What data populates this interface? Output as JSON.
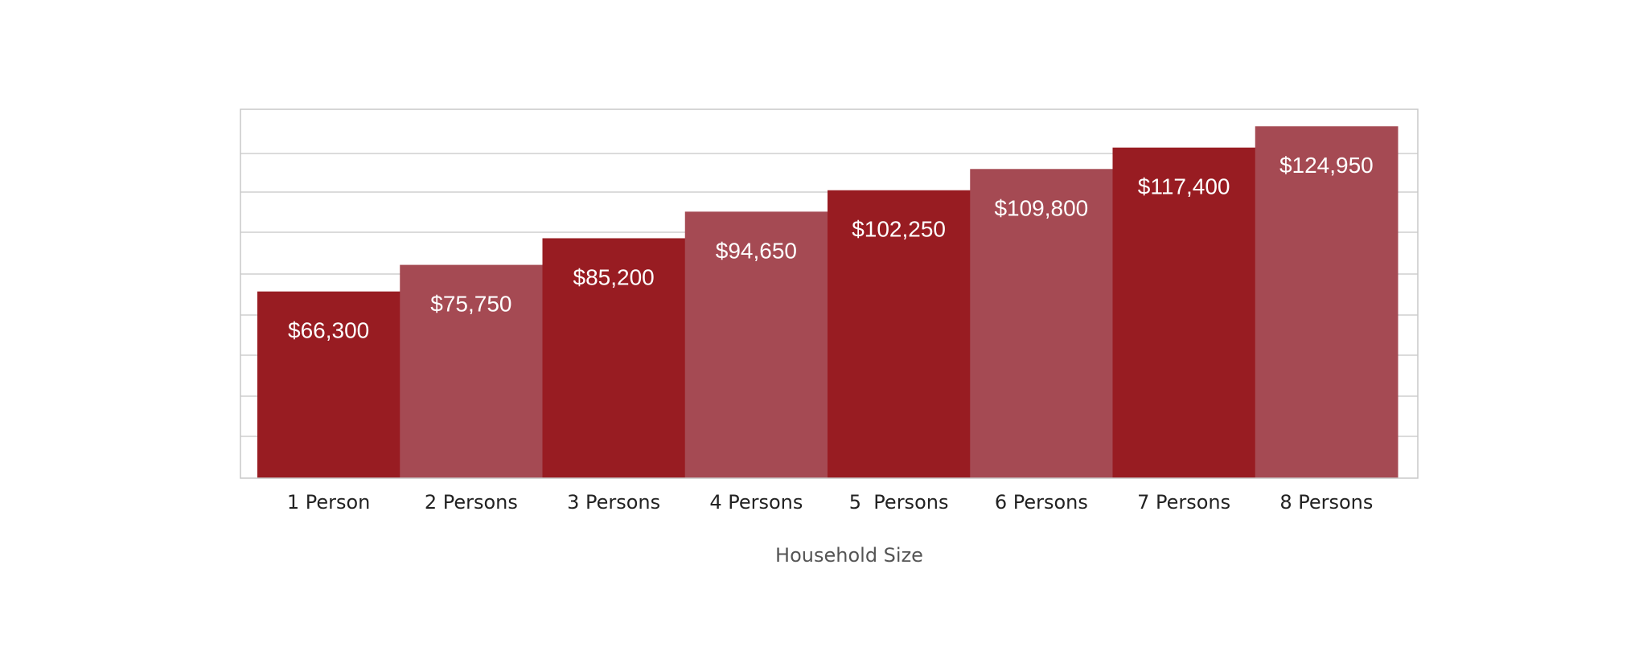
{
  "chart_data": {
    "type": "bar",
    "title": "",
    "xlabel": "Household Size",
    "ylabel": "",
    "categories": [
      "1 Person",
      "2 Persons",
      "3 Persons",
      "4 Persons",
      "5  Persons",
      "6 Persons",
      "7 Persons",
      "8 Persons"
    ],
    "values": [
      66300,
      75750,
      85200,
      94650,
      102250,
      109800,
      117400,
      124950
    ],
    "value_labels": [
      "$66,300",
      "$75,750",
      "$85,200",
      "$94,650",
      "$102,250",
      "$109,800",
      "$117,400",
      "$124,950"
    ],
    "ylim": [
      0,
      131000
    ],
    "grid": true,
    "legend": "none",
    "colors": [
      "#981c22",
      "#a54a53"
    ]
  }
}
